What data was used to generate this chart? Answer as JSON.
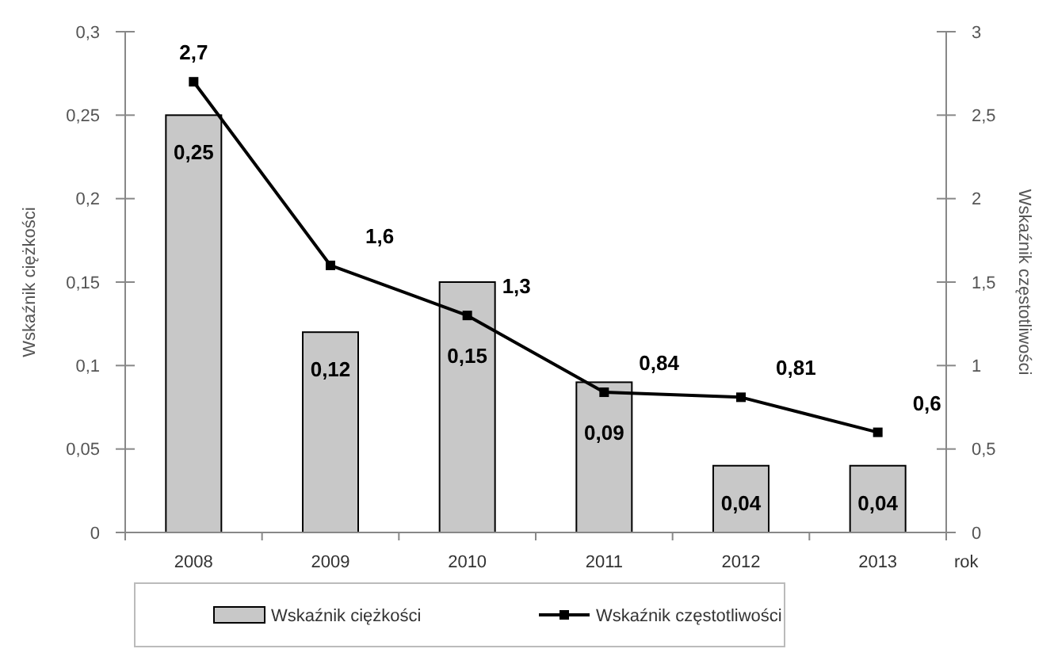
{
  "chart_data": {
    "type": "bar",
    "xlabel": "rok",
    "ylabel": "Wskaźnik ciężkości",
    "y2label": "Wskaźnik częstotliwości",
    "categories": [
      "2008",
      "2009",
      "2010",
      "2011",
      "2012",
      "2013"
    ],
    "series": [
      {
        "name": "Wskaźnik ciężkości",
        "color": "#c8c8c8",
        "values": [
          0.25,
          0.12,
          0.15,
          0.09,
          0.04,
          0.04
        ],
        "value_labels": [
          "0,25",
          "0,12",
          "0,15",
          "0,09",
          "0,04",
          "0,04"
        ]
      },
      {
        "name": "Wskaźnik częstotliwości",
        "type": "line",
        "axis": "y2",
        "color": "#000000",
        "values": [
          2.7,
          1.6,
          1.3,
          0.84,
          0.81,
          0.6
        ],
        "value_labels": [
          "2,7",
          "1,6",
          "1,3",
          "0,84",
          "0,81",
          "0,6"
        ],
        "marker": "square"
      }
    ],
    "ylim": [
      0,
      0.3
    ],
    "yticks": [
      0,
      {
        "value": 0.05,
        "label": "0,05"
      },
      {
        "value": 0.1,
        "label": "0,1"
      },
      {
        "value": 0.15,
        "label": "0,15"
      },
      {
        "value": 0.2,
        "label": "0,2"
      },
      {
        "value": 0.25,
        "label": "0,25"
      },
      {
        "value": 0.3,
        "label": "0,3"
      }
    ],
    "y2lim": [
      0,
      3
    ],
    "y2ticks": [
      0,
      {
        "value": 0.5,
        "label": "0,5"
      },
      1,
      {
        "value": 1.5,
        "label": "1,5"
      },
      2,
      {
        "value": 2.5,
        "label": "2,5"
      },
      3
    ],
    "legend": "bottom",
    "grid": false
  }
}
